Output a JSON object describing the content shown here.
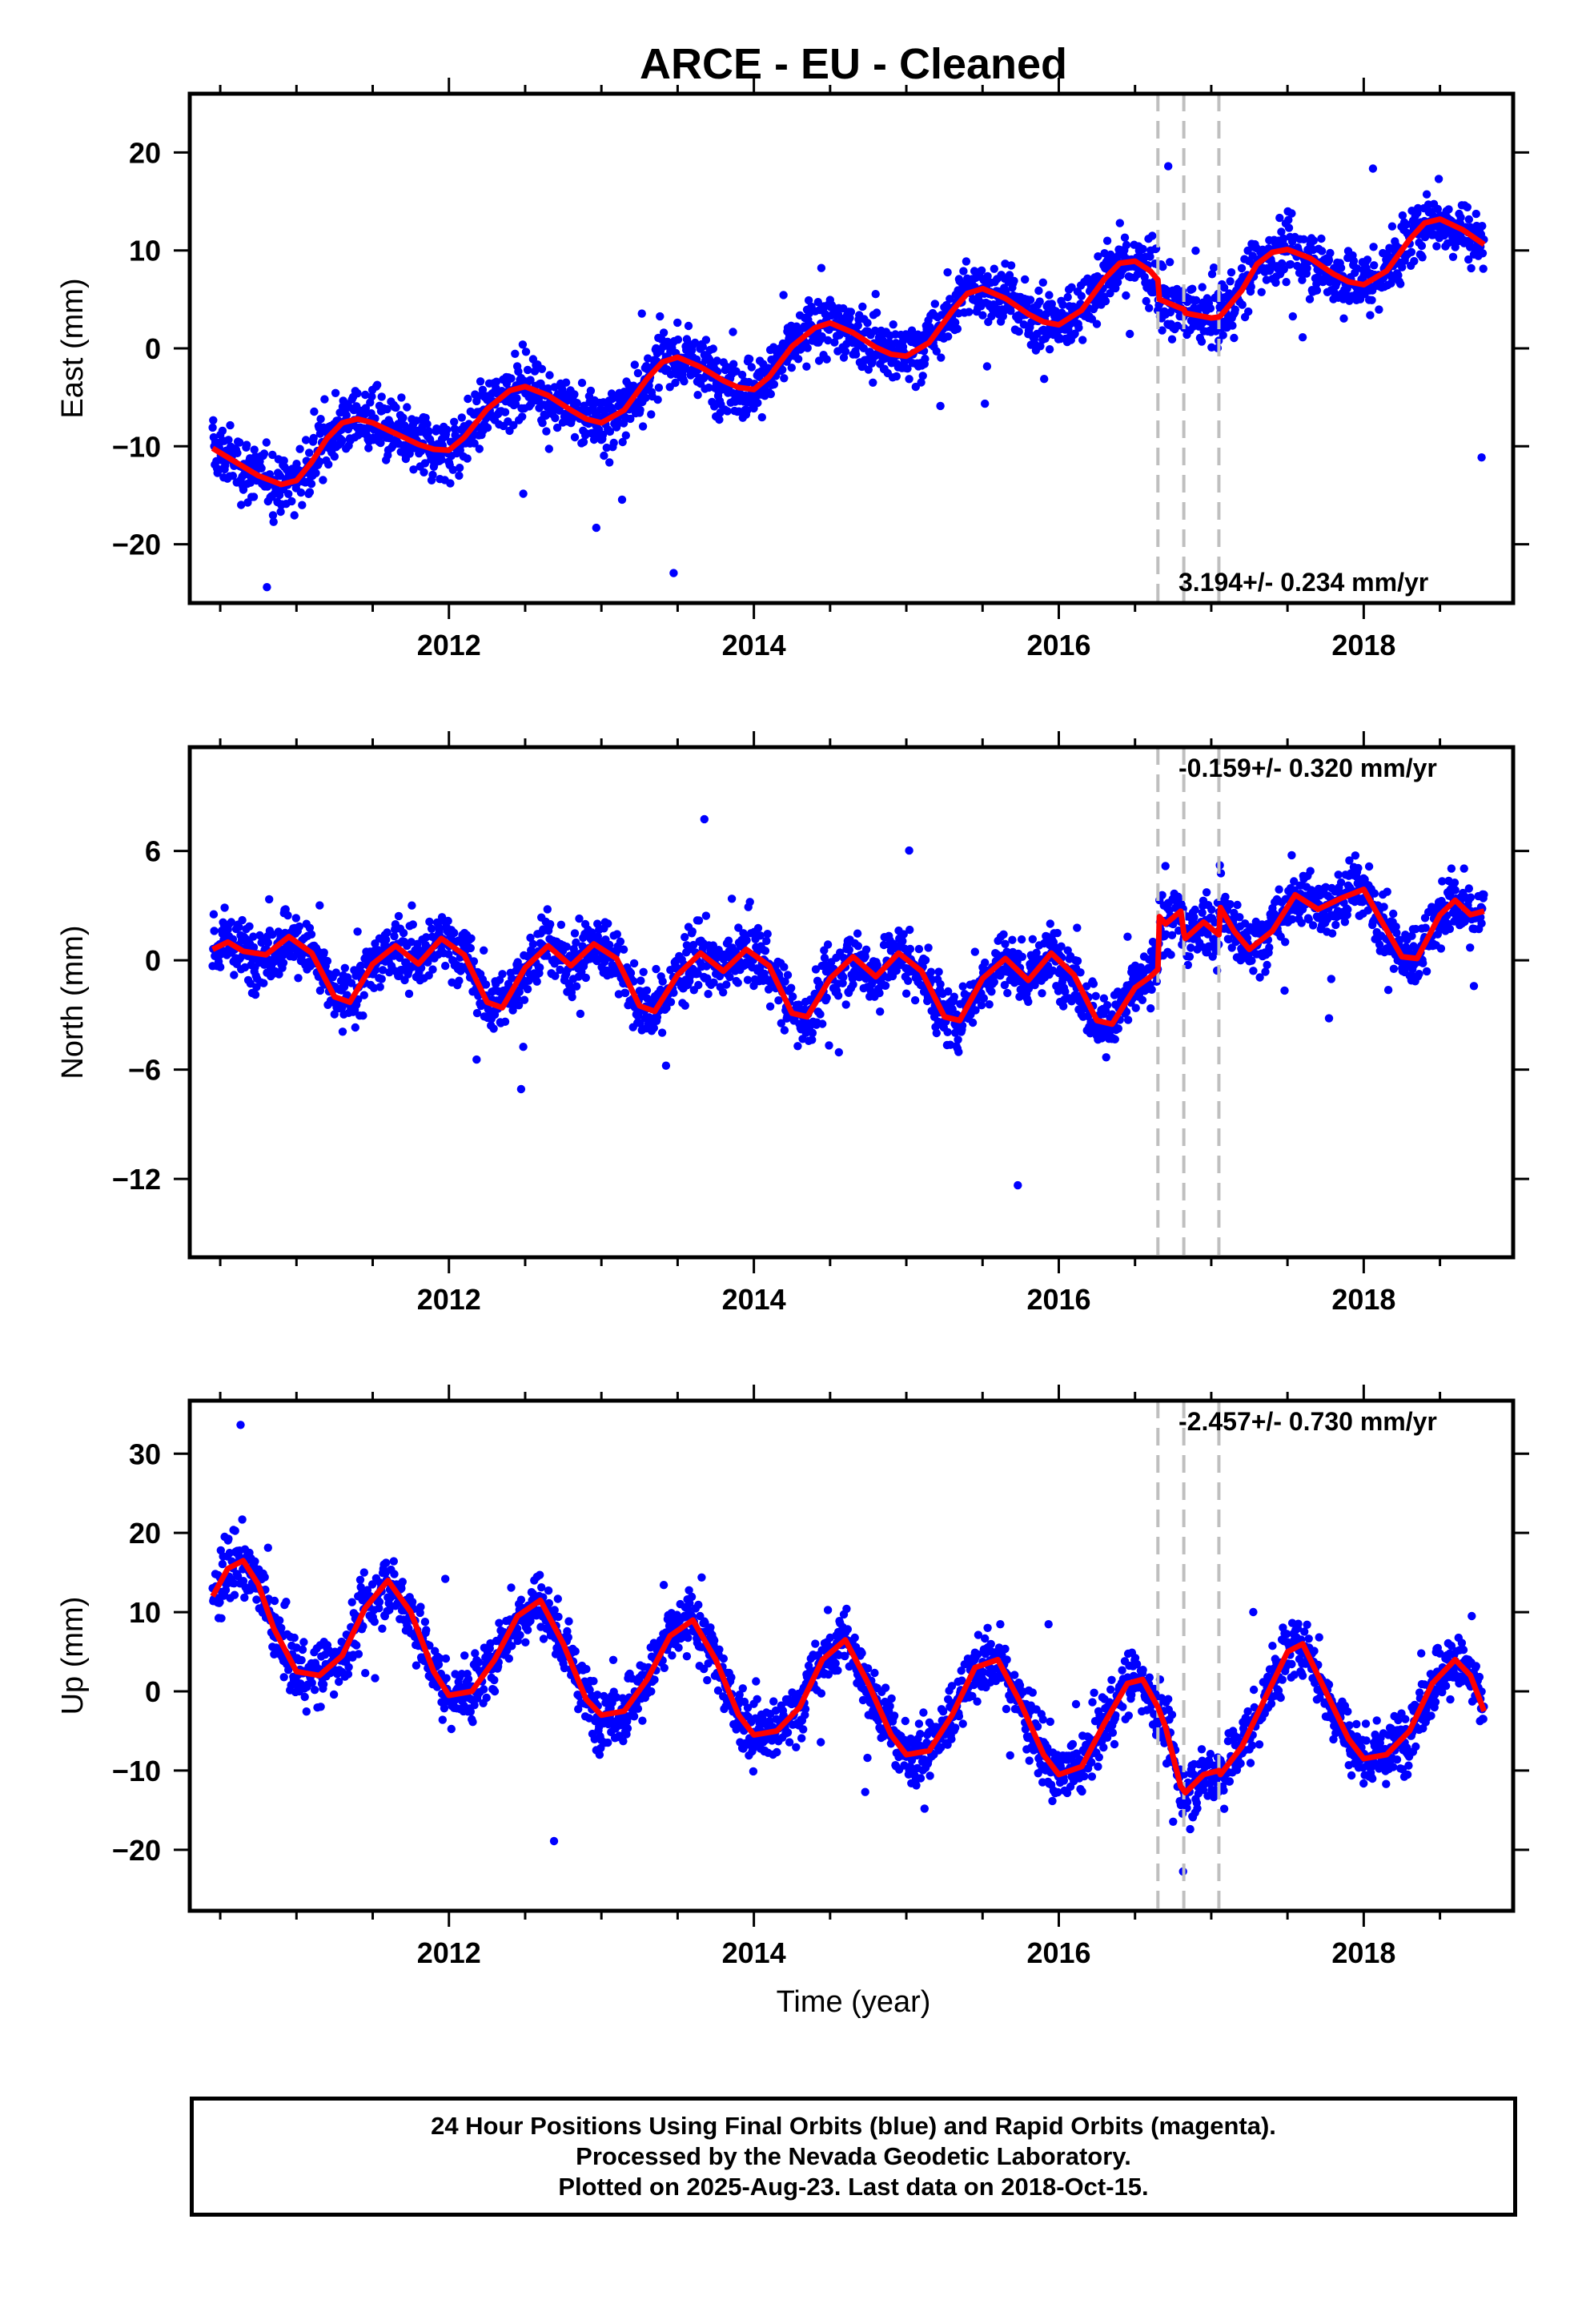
{
  "figure": {
    "title": "ARCE  - EU - Cleaned",
    "xlabel": "Time (year)",
    "footer": [
      "24 Hour Positions Using Final Orbits (blue) and Rapid Orbits (magenta).",
      "Processed by the Nevada Geodetic Laboratory.",
      "Plotted on 2025-Aug-23. Last data on 2018-Oct-15."
    ]
  },
  "colors": {
    "points": "#0000ff",
    "model": "#ff0000",
    "breaks": "#bfbfbf",
    "frame": "#000000"
  },
  "chart_data": [
    {
      "type": "scatter",
      "ylabel": "East (mm)",
      "rate": "3.194+/- 0.234 mm/yr",
      "xlim": [
        2010.3,
        2018.98
      ],
      "ylim": [
        -26,
        26
      ],
      "yticks": [
        -20,
        -10,
        0,
        10,
        20
      ],
      "xticks": [
        2012,
        2014,
        2016,
        2018
      ],
      "breaks": [
        2016.65,
        2016.82,
        2017.05
      ],
      "model": {
        "x": [
          2010.45,
          2010.6,
          2010.75,
          2010.9,
          2011.0,
          2011.1,
          2011.2,
          2011.3,
          2011.4,
          2011.5,
          2011.65,
          2011.8,
          2011.9,
          2012.0,
          2012.1,
          2012.25,
          2012.4,
          2012.5,
          2012.65,
          2012.8,
          2012.9,
          2013.0,
          2013.15,
          2013.3,
          2013.4,
          2013.5,
          2013.65,
          2013.8,
          2013.9,
          2014.0,
          2014.1,
          2014.25,
          2014.4,
          2014.5,
          2014.65,
          2014.8,
          2014.9,
          2015.0,
          2015.15,
          2015.3,
          2015.4,
          2015.5,
          2015.65,
          2015.8,
          2015.9,
          2016.0,
          2016.15,
          2016.3,
          2016.4,
          2016.5,
          2016.6,
          2016.65,
          2016.66,
          2016.8,
          2016.82,
          2016.83,
          2017.0,
          2017.05,
          2017.06,
          2017.2,
          2017.3,
          2017.4,
          2017.5,
          2017.65,
          2017.8,
          2017.9,
          2018.0,
          2018.15,
          2018.3,
          2018.4,
          2018.5,
          2018.65,
          2018.79
        ],
        "y": [
          -10.2,
          -11.6,
          -13.0,
          -13.9,
          -13.5,
          -11.6,
          -9.2,
          -7.6,
          -7.2,
          -7.6,
          -8.7,
          -9.8,
          -10.3,
          -10.4,
          -9.1,
          -6.2,
          -4.3,
          -3.9,
          -4.8,
          -6.3,
          -7.2,
          -7.6,
          -6.3,
          -3.1,
          -1.4,
          -0.9,
          -1.9,
          -3.3,
          -4.0,
          -4.2,
          -2.9,
          0.2,
          2.1,
          2.6,
          1.6,
          0.1,
          -0.6,
          -0.8,
          0.6,
          3.8,
          5.6,
          6.1,
          5.1,
          3.5,
          2.7,
          2.4,
          3.9,
          7.1,
          8.7,
          8.9,
          7.9,
          7.0,
          5.0,
          4.1,
          4.0,
          3.6,
          3.1,
          3.2,
          3.3,
          5.9,
          8.6,
          9.8,
          10.1,
          9.2,
          7.6,
          6.8,
          6.5,
          7.9,
          11.1,
          12.8,
          13.2,
          12.1,
          10.6
        ]
      }
    },
    {
      "type": "scatter",
      "ylabel": "North (mm)",
      "rate": "-0.159+/- 0.320 mm/yr",
      "xlim": [
        2010.3,
        2018.98
      ],
      "ylim": [
        -16.3,
        11.7
      ],
      "yticks": [
        -12,
        -6,
        0,
        6
      ],
      "xticks": [
        2012,
        2014,
        2016,
        2018
      ],
      "breaks": [
        2016.65,
        2016.82,
        2017.05
      ],
      "model": {
        "x": [
          2010.45,
          2010.55,
          2010.65,
          2010.8,
          2010.95,
          2011.1,
          2011.25,
          2011.35,
          2011.5,
          2011.65,
          2011.8,
          2011.95,
          2012.1,
          2012.25,
          2012.35,
          2012.5,
          2012.65,
          2012.8,
          2012.95,
          2013.1,
          2013.25,
          2013.35,
          2013.5,
          2013.65,
          2013.8,
          2013.95,
          2014.1,
          2014.25,
          2014.35,
          2014.5,
          2014.65,
          2014.8,
          2014.95,
          2015.1,
          2015.25,
          2015.35,
          2015.5,
          2015.65,
          2015.8,
          2015.95,
          2016.1,
          2016.25,
          2016.35,
          2016.5,
          2016.6,
          2016.65,
          2016.66,
          2016.7,
          2016.8,
          2016.82,
          2016.83,
          2016.95,
          2017.05,
          2017.06,
          2017.15,
          2017.25,
          2017.4,
          2017.55,
          2017.7,
          2017.85,
          2018.0,
          2018.1,
          2018.25,
          2018.35,
          2018.5,
          2018.6,
          2018.7,
          2018.79
        ],
        "y": [
          0.6,
          1.0,
          0.5,
          0.3,
          1.3,
          0.4,
          -2.0,
          -2.3,
          -0.2,
          0.8,
          -0.2,
          1.2,
          0.3,
          -2.3,
          -2.6,
          -0.4,
          0.8,
          -0.3,
          0.9,
          0.1,
          -2.5,
          -2.8,
          -0.8,
          0.4,
          -0.6,
          0.6,
          -0.3,
          -2.9,
          -3.1,
          -1.0,
          0.2,
          -0.9,
          0.4,
          -0.6,
          -3.1,
          -3.3,
          -1.0,
          0.1,
          -1.1,
          0.4,
          -0.8,
          -3.3,
          -3.5,
          -1.5,
          -0.9,
          -0.5,
          2.4,
          2.0,
          2.7,
          1.5,
          1.2,
          2.1,
          1.4,
          2.9,
          1.6,
          0.6,
          1.6,
          3.6,
          2.8,
          3.4,
          3.9,
          2.4,
          0.2,
          0.1,
          2.5,
          3.3,
          2.5,
          2.7
        ]
      }
    },
    {
      "type": "scatter",
      "ylabel": "Up (mm)",
      "rate": "-2.457+/- 0.730 mm/yr",
      "xlim": [
        2010.3,
        2018.98
      ],
      "ylim": [
        -27.7,
        36.7
      ],
      "yticks": [
        -20,
        -10,
        0,
        10,
        20,
        30
      ],
      "xticks": [
        2012,
        2014,
        2016,
        2018
      ],
      "breaks": [
        2016.65,
        2016.82,
        2017.05
      ],
      "model": {
        "x": [
          2010.45,
          2010.55,
          2010.65,
          2010.75,
          2010.85,
          2011.0,
          2011.15,
          2011.3,
          2011.45,
          2011.6,
          2011.75,
          2011.9,
          2012.0,
          2012.15,
          2012.3,
          2012.45,
          2012.6,
          2012.75,
          2012.9,
          2013.0,
          2013.15,
          2013.3,
          2013.45,
          2013.6,
          2013.75,
          2013.9,
          2014.0,
          2014.15,
          2014.3,
          2014.45,
          2014.6,
          2014.75,
          2014.9,
          2015.0,
          2015.15,
          2015.3,
          2015.45,
          2015.6,
          2015.75,
          2015.9,
          2016.0,
          2016.15,
          2016.3,
          2016.45,
          2016.55,
          2016.65,
          2016.7,
          2016.8,
          2016.82,
          2016.83,
          2016.95,
          2017.05,
          2017.06,
          2017.2,
          2017.35,
          2017.5,
          2017.6,
          2017.75,
          2017.9,
          2018.0,
          2018.15,
          2018.3,
          2018.45,
          2018.6,
          2018.7,
          2018.79
        ],
        "y": [
          12,
          15.5,
          16.5,
          13.5,
          8,
          2.5,
          2,
          4.5,
          10.5,
          14,
          10,
          2.5,
          -0.5,
          0,
          4,
          9.5,
          11.5,
          6,
          -1,
          -3,
          -2.5,
          1.5,
          7,
          9,
          4,
          -3,
          -5.5,
          -5,
          -2,
          4,
          6.5,
          1,
          -5.5,
          -8,
          -7.5,
          -3,
          3,
          4,
          -1.5,
          -8,
          -10.5,
          -9.5,
          -4,
          1,
          1.5,
          -2,
          -4.5,
          -12,
          -12.5,
          -12.8,
          -10.5,
          -10,
          -10.5,
          -7,
          -1,
          5,
          6,
          0,
          -6,
          -8.5,
          -8,
          -5,
          1,
          4,
          2,
          -2.5
        ]
      }
    }
  ]
}
